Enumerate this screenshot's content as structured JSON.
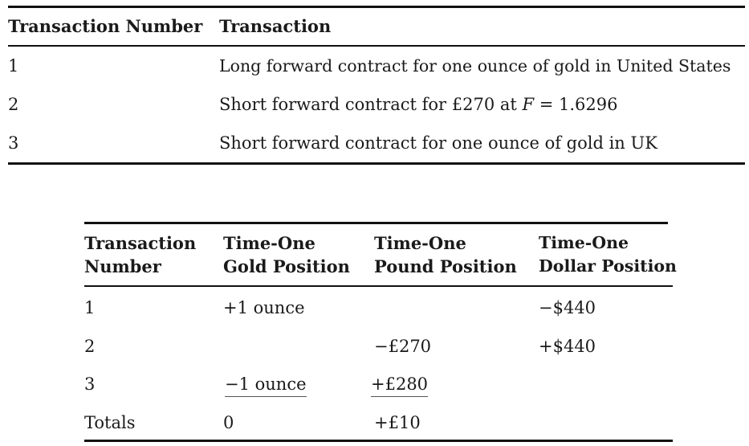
{
  "table1": {
    "headers": [
      "Transaction Number",
      "Transaction"
    ],
    "rows": [
      {
        "number": "1",
        "transaction": "Long forward contract for one ounce of gold in United States"
      },
      {
        "number": "2",
        "transaction_prefix": "Short forward contract for £270 at ",
        "transaction_var": "F",
        "transaction_suffix": " = 1.6296"
      },
      {
        "number": "3",
        "transaction": "Short forward contract for one ounce of gold in UK"
      }
    ]
  },
  "table2": {
    "headers": [
      {
        "line1": "Transaction",
        "line2": "Number"
      },
      {
        "line1": "Time-One",
        "line2": "Gold Position"
      },
      {
        "line1": "Time-One",
        "line2": "Pound Position"
      },
      {
        "line1": "Time-One",
        "line2": "Dollar Position"
      }
    ],
    "rows": [
      {
        "number": "1",
        "gold": "+1 ounce",
        "pound": "",
        "dollar": "−$440"
      },
      {
        "number": "2",
        "gold": "",
        "pound": "−£270",
        "dollar": "+$440"
      },
      {
        "number": "3",
        "gold": "−1 ounce",
        "pound": "+£280",
        "dollar": ""
      },
      {
        "number": "Totals",
        "gold": "0",
        "pound": "+£10",
        "dollar": ""
      }
    ]
  }
}
